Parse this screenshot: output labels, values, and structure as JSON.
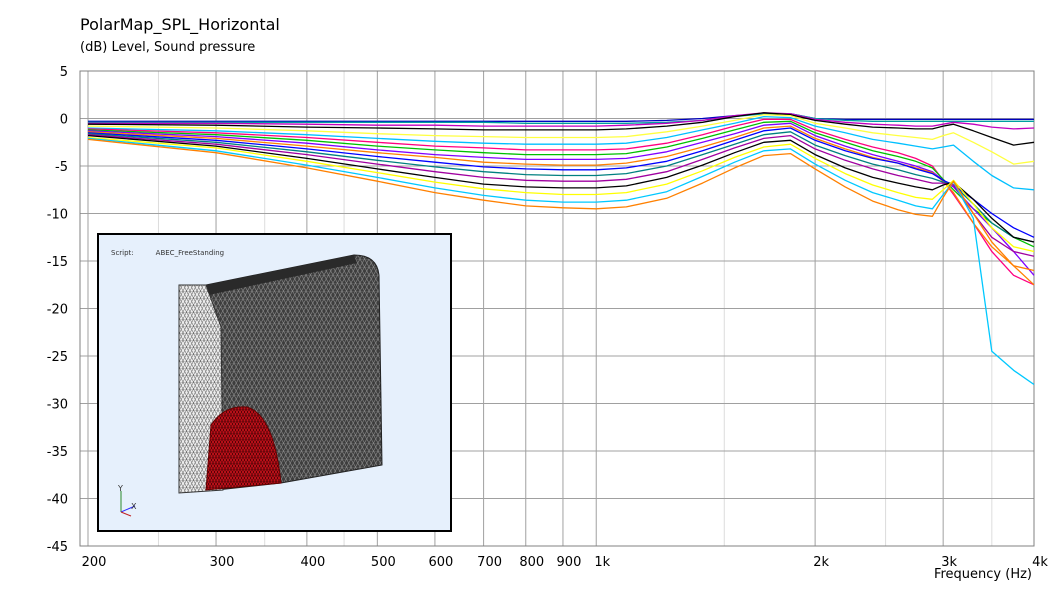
{
  "chart_data": {
    "type": "line",
    "title": "PolarMap_SPL_Horizontal",
    "ylabel": "(dB)  Level, Sound pressure",
    "xlabel": "Frequency  (Hz)",
    "x_scale": "log",
    "xlim": [
      195,
      4000
    ],
    "ylim": [
      -45,
      5
    ],
    "grid": true,
    "yticks": [
      "5",
      "0",
      "-5",
      "-10",
      "-15",
      "-20",
      "-25",
      "-30",
      "-35",
      "-40",
      "-45"
    ],
    "xtick_labels": [
      {
        "v": 200,
        "t": "200"
      },
      {
        "v": 300,
        "t": "300"
      },
      {
        "v": 400,
        "t": "400"
      },
      {
        "v": 500,
        "t": "500"
      },
      {
        "v": 600,
        "t": "600"
      },
      {
        "v": 700,
        "t": "700"
      },
      {
        "v": 800,
        "t": "800"
      },
      {
        "v": 900,
        "t": "900"
      },
      {
        "v": 1000,
        "t": "1k"
      },
      {
        "v": 2000,
        "t": "2k"
      },
      {
        "v": 3000,
        "t": "3k"
      },
      {
        "v": 4000,
        "t": "4k"
      }
    ],
    "x": [
      200,
      300,
      400,
      500,
      600,
      700,
      800,
      900,
      1000,
      1100,
      1250,
      1400,
      1550,
      1700,
      1850,
      2000,
      2200,
      2400,
      2600,
      2750,
      2900,
      3000,
      3100,
      3300,
      3500,
      3750,
      4000
    ],
    "series": [
      {
        "color": "#0000c0",
        "values": [
          -0.3,
          -0.3,
          -0.3,
          -0.3,
          -0.3,
          -0.3,
          -0.3,
          -0.3,
          -0.3,
          -0.3,
          -0.2,
          0,
          0.3,
          0.5,
          0.5,
          0,
          -0.1,
          -0.1,
          -0.1,
          -0.1,
          -0.1,
          -0.1,
          -0.1,
          -0.1,
          -0.1,
          -0.1,
          -0.1
        ]
      },
      {
        "color": "#00a0a0",
        "values": [
          -0.4,
          -0.4,
          -0.4,
          -0.4,
          -0.4,
          -0.4,
          -0.5,
          -0.5,
          -0.5,
          -0.5,
          -0.4,
          -0.2,
          0.2,
          0.5,
          0.5,
          0,
          -0.2,
          -0.3,
          -0.3,
          -0.3,
          -0.3,
          -0.3,
          -0.3,
          -0.3,
          -0.3,
          -0.3,
          -0.3
        ]
      },
      {
        "color": "#c000c0",
        "values": [
          -0.5,
          -0.5,
          -0.6,
          -0.7,
          -0.7,
          -0.8,
          -0.8,
          -0.8,
          -0.8,
          -0.7,
          -0.5,
          -0.2,
          0.3,
          0.6,
          0.5,
          -0.1,
          -0.4,
          -0.6,
          -0.7,
          -0.8,
          -0.8,
          -0.6,
          -0.4,
          -0.6,
          -0.9,
          -1.1,
          -1.0
        ]
      },
      {
        "color": "#000000",
        "values": [
          -0.6,
          -0.7,
          -0.9,
          -1.0,
          -1.1,
          -1.2,
          -1.2,
          -1.2,
          -1.2,
          -1.1,
          -0.8,
          -0.4,
          0.2,
          0.6,
          0.4,
          -0.2,
          -0.6,
          -0.9,
          -1.0,
          -1.1,
          -1.1,
          -0.8,
          -0.6,
          -1.3,
          -2.0,
          -2.8,
          -2.5
        ]
      },
      {
        "color": "#ffff40",
        "values": [
          -0.8,
          -1.0,
          -1.3,
          -1.6,
          -1.8,
          -1.9,
          -2.0,
          -2.0,
          -2.0,
          -1.9,
          -1.4,
          -0.8,
          -0.2,
          0.4,
          0.3,
          -0.5,
          -1.0,
          -1.5,
          -1.8,
          -2.0,
          -2.2,
          -1.8,
          -1.5,
          -2.5,
          -3.5,
          -4.8,
          -4.5
        ]
      },
      {
        "color": "#00c0ff",
        "values": [
          -1.0,
          -1.3,
          -1.7,
          -2.1,
          -2.4,
          -2.6,
          -2.7,
          -2.7,
          -2.7,
          -2.6,
          -2.0,
          -1.2,
          -0.5,
          0.2,
          0.1,
          -0.8,
          -1.5,
          -2.2,
          -2.6,
          -2.9,
          -3.2,
          -3.0,
          -2.8,
          -4.5,
          -6.0,
          -7.3,
          -7.5
        ]
      },
      {
        "color": "#ff0080",
        "values": [
          -1.1,
          -1.5,
          -2.0,
          -2.5,
          -2.9,
          -3.1,
          -3.3,
          -3.3,
          -3.3,
          -3.2,
          -2.6,
          -1.7,
          -0.8,
          -0.1,
          -0.1,
          -1.2,
          -2.2,
          -3.0,
          -3.6,
          -4.2,
          -5.0,
          -6.5,
          -8.0,
          -11.0,
          -14.0,
          -16.5,
          -17.5
        ]
      },
      {
        "color": "#00c000",
        "values": [
          -1.2,
          -1.7,
          -2.3,
          -2.9,
          -3.3,
          -3.6,
          -3.8,
          -3.8,
          -3.8,
          -3.7,
          -3.0,
          -2.1,
          -1.2,
          -0.4,
          -0.3,
          -1.5,
          -2.5,
          -3.4,
          -4.0,
          -4.5,
          -5.2,
          -6.4,
          -7.5,
          -9.5,
          -11.0,
          -12.5,
          -13.5
        ]
      },
      {
        "color": "#8000ff",
        "values": [
          -1.3,
          -1.9,
          -2.6,
          -3.3,
          -3.8,
          -4.1,
          -4.3,
          -4.3,
          -4.3,
          -4.2,
          -3.5,
          -2.5,
          -1.6,
          -0.7,
          -0.5,
          -1.8,
          -2.9,
          -3.8,
          -4.5,
          -5.0,
          -5.6,
          -6.5,
          -7.2,
          -9.5,
          -11.5,
          -14.0,
          -16.5
        ]
      },
      {
        "color": "#ff8000",
        "values": [
          -1.4,
          -2.1,
          -2.9,
          -3.6,
          -4.1,
          -4.6,
          -4.8,
          -4.9,
          -4.9,
          -4.7,
          -4.0,
          -3.0,
          -2.0,
          -1.0,
          -0.8,
          -2.1,
          -3.2,
          -4.1,
          -4.7,
          -5.2,
          -5.7,
          -6.6,
          -7.8,
          -11.0,
          -13.5,
          -15.5,
          -16.0
        ]
      },
      {
        "color": "#0000ff",
        "values": [
          -1.5,
          -2.3,
          -3.2,
          -4.0,
          -4.6,
          -5.1,
          -5.3,
          -5.4,
          -5.4,
          -5.2,
          -4.5,
          -3.4,
          -2.3,
          -1.3,
          -1.0,
          -2.3,
          -3.4,
          -4.2,
          -4.7,
          -5.3,
          -5.8,
          -6.5,
          -7.0,
          -8.5,
          -10.0,
          -11.5,
          -12.5
        ]
      },
      {
        "color": "#008080",
        "values": [
          -1.6,
          -2.5,
          -3.5,
          -4.4,
          -5.1,
          -5.6,
          -5.9,
          -6.0,
          -6.0,
          -5.8,
          -5.0,
          -3.8,
          -2.7,
          -1.7,
          -1.4,
          -2.8,
          -3.9,
          -4.8,
          -5.4,
          -5.9,
          -6.3,
          -6.7,
          -7.0,
          -9.0,
          -11.0,
          -12.5,
          -13.0
        ]
      },
      {
        "color": "#a000a0",
        "values": [
          -1.7,
          -2.7,
          -3.8,
          -4.8,
          -5.6,
          -6.2,
          -6.5,
          -6.6,
          -6.6,
          -6.4,
          -5.6,
          -4.3,
          -3.1,
          -2.1,
          -1.8,
          -3.2,
          -4.4,
          -5.3,
          -6.0,
          -6.4,
          -6.8,
          -6.8,
          -7.0,
          -10.0,
          -12.5,
          -14.0,
          -14.5
        ]
      },
      {
        "color": "#000000",
        "values": [
          -1.8,
          -2.9,
          -4.2,
          -5.3,
          -6.2,
          -6.9,
          -7.2,
          -7.3,
          -7.3,
          -7.1,
          -6.2,
          -4.9,
          -3.6,
          -2.5,
          -2.3,
          -3.8,
          -5.2,
          -6.2,
          -6.8,
          -7.2,
          -7.5,
          -7.0,
          -6.7,
          -8.5,
          -10.5,
          -12.5,
          -13.0
        ]
      },
      {
        "color": "#ffff00",
        "values": [
          -2.0,
          -3.1,
          -4.5,
          -5.7,
          -6.7,
          -7.4,
          -7.8,
          -8.0,
          -8.0,
          -7.8,
          -6.9,
          -5.5,
          -4.1,
          -3.0,
          -2.7,
          -4.2,
          -5.8,
          -7.0,
          -7.8,
          -8.3,
          -8.5,
          -7.5,
          -6.5,
          -9.0,
          -11.5,
          -13.5,
          -14.0
        ]
      },
      {
        "color": "#00c8ff",
        "values": [
          -2.1,
          -3.4,
          -4.9,
          -6.2,
          -7.3,
          -8.1,
          -8.6,
          -8.8,
          -8.8,
          -8.6,
          -7.7,
          -6.1,
          -4.6,
          -3.4,
          -3.2,
          -4.8,
          -6.5,
          -7.8,
          -8.6,
          -9.2,
          -9.5,
          -8.0,
          -6.7,
          -10.5,
          -24.5,
          -26.5,
          -28.0
        ]
      },
      {
        "color": "#ff8000",
        "values": [
          -2.2,
          -3.6,
          -5.2,
          -6.6,
          -7.8,
          -8.6,
          -9.2,
          -9.4,
          -9.5,
          -9.3,
          -8.4,
          -6.8,
          -5.2,
          -3.9,
          -3.7,
          -5.3,
          -7.2,
          -8.7,
          -9.6,
          -10.1,
          -10.3,
          -8.3,
          -6.6,
          -10.0,
          -13.0,
          -15.5,
          -17.5
        ]
      }
    ]
  },
  "inset": {
    "script_label": "Script:",
    "script_value": "ABEC_FreeStanding",
    "axis_y": "Y",
    "axis_x": "X"
  }
}
